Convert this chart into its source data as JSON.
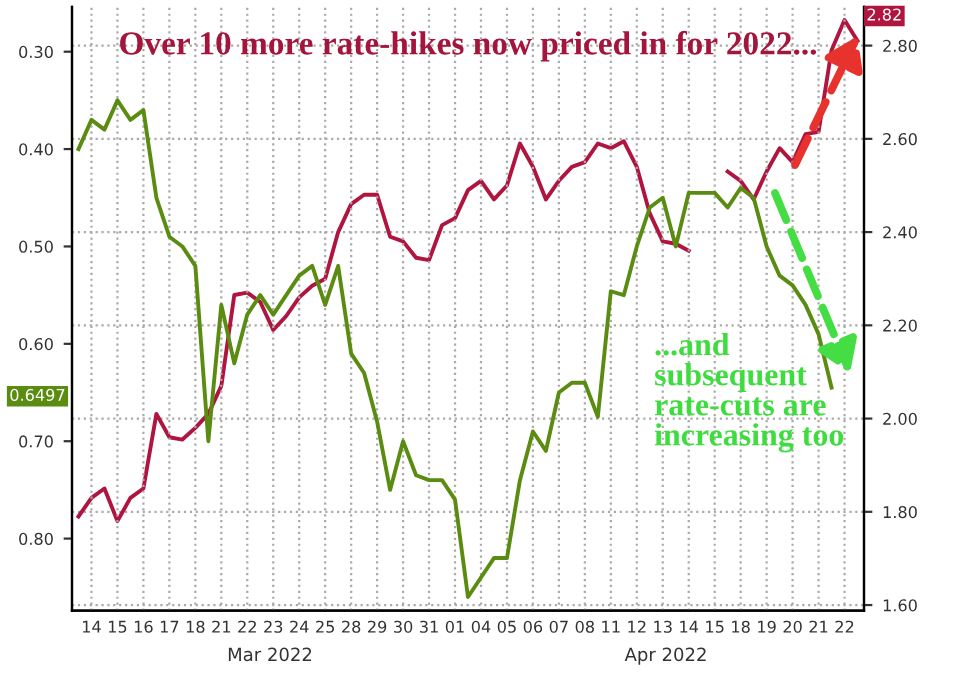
{
  "chart_data": {
    "type": "line",
    "title": "Over 10 more rate-hikes now priced in for 2022...",
    "categories": [
      null,
      "14",
      null,
      "15",
      null,
      "16",
      null,
      "17",
      null,
      "18",
      null,
      "21",
      null,
      "22",
      null,
      "23",
      null,
      "24",
      null,
      "25",
      null,
      "28",
      null,
      "29",
      null,
      "30",
      null,
      "31",
      null,
      "01",
      null,
      "04",
      null,
      "05",
      null,
      "06",
      null,
      "07",
      null,
      "08",
      null,
      "11",
      null,
      "12",
      null,
      "13",
      null,
      "14",
      null,
      "15",
      null,
      "18",
      null,
      "19",
      null,
      "20",
      null,
      "21",
      null,
      "22",
      null
    ],
    "series": [
      {
        "color": "#5b8c12",
        "values": [
          0.4,
          0.37,
          0.38,
          0.35,
          0.37,
          0.36,
          0.45,
          0.49,
          0.5,
          0.52,
          0.7,
          0.56,
          0.62,
          0.57,
          0.55,
          0.57,
          0.55,
          0.53,
          0.52,
          0.56,
          0.52,
          0.61,
          0.63,
          0.68,
          0.75,
          0.7,
          0.735,
          0.74,
          0.74,
          0.76,
          0.86,
          0.84,
          0.82,
          0.82,
          0.74,
          0.69,
          0.71,
          0.65,
          0.64,
          0.64,
          0.675,
          0.546,
          0.55,
          0.5,
          0.46,
          0.45,
          0.5,
          0.445,
          0.445,
          0.445,
          0.46,
          0.44,
          0.45,
          0.5,
          0.53,
          0.54,
          0.56,
          0.59,
          0.645,
          null,
          null
        ]
      },
      {
        "color": "#b01540",
        "axis": "y2",
        "values": [
          1.79,
          1.83,
          1.85,
          1.78,
          1.83,
          1.85,
          2.01,
          1.96,
          1.955,
          1.98,
          2.01,
          2.07,
          2.265,
          2.27,
          2.25,
          2.19,
          2.22,
          2.26,
          2.285,
          2.3,
          2.4,
          2.46,
          2.48,
          2.48,
          2.39,
          2.38,
          2.345,
          2.34,
          2.415,
          2.43,
          2.49,
          2.51,
          2.47,
          2.5,
          2.59,
          2.54,
          2.47,
          2.51,
          2.54,
          2.55,
          2.59,
          2.58,
          2.595,
          2.54,
          2.44,
          2.38,
          2.375,
          2.36,
          null,
          null,
          2.53,
          2.51,
          2.47,
          2.53,
          2.58,
          2.55,
          2.61,
          2.615,
          2.79,
          2.855,
          2.81
        ]
      }
    ],
    "ylim": [
      0.874,
      0.254
    ],
    "yticks": [
      {
        "value": 0.3,
        "label": "0.30"
      },
      {
        "value": 0.4,
        "label": "0.40"
      },
      {
        "value": 0.5,
        "label": "0.50"
      },
      {
        "value": 0.6,
        "label": "0.60"
      },
      {
        "value": 0.7,
        "label": "0.70"
      },
      {
        "value": 0.8,
        "label": "0.80"
      }
    ],
    "y2lim": [
      1.588,
      2.883
    ],
    "y2ticks": [
      {
        "value": 1.6,
        "label": "1.60"
      },
      {
        "value": 1.8,
        "label": "1.80"
      },
      {
        "value": 2.0,
        "label": "2.00"
      },
      {
        "value": 2.2,
        "label": "2.20"
      },
      {
        "value": 2.4,
        "label": "2.40"
      },
      {
        "value": 2.6,
        "label": "2.60"
      },
      {
        "value": 2.8,
        "label": "2.80"
      }
    ],
    "grid": true,
    "line_style": "solid",
    "annotations": [
      "...and\nsubsequent\nrate-cuts are\nincreasing too",
      "Mar 2022",
      "Apr 2022",
      "0.6497",
      "2.82"
    ]
  }
}
